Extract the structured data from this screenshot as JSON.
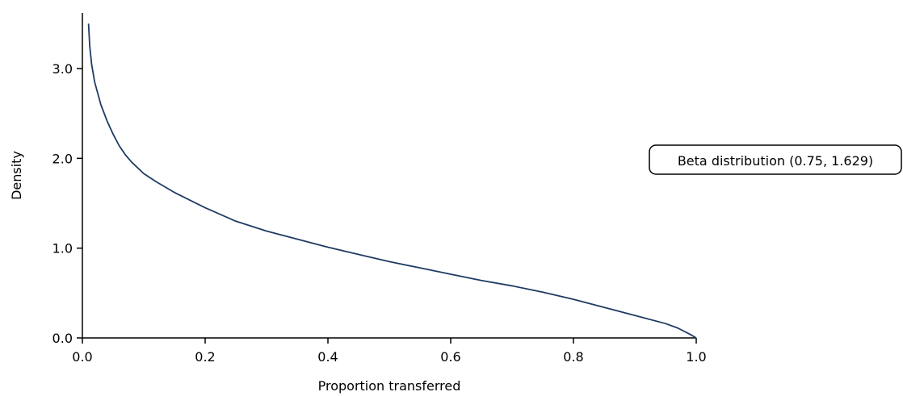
{
  "chart_data": {
    "type": "line",
    "title": "",
    "xlabel": "Proportion transferred",
    "ylabel": "Density",
    "xlim": [
      0.0,
      1.0
    ],
    "ylim": [
      0.0,
      3.5
    ],
    "x_ticks": [
      0.0,
      0.2,
      0.4,
      0.6,
      0.8,
      1.0
    ],
    "x_tick_labels": [
      "0.0",
      "0.2",
      "0.4",
      "0.6",
      "0.8",
      "1.0"
    ],
    "y_ticks": [
      0.0,
      1.0,
      2.0,
      3.0
    ],
    "y_tick_labels": [
      "0.0",
      "1.0",
      "2.0",
      "3.0"
    ],
    "grid": false,
    "annotation": "Beta distribution (0.75, 1.629)",
    "series": [
      {
        "color": "#1f3b63",
        "x": [
          0.01,
          0.012,
          0.015,
          0.02,
          0.03,
          0.04,
          0.05,
          0.06,
          0.07,
          0.08,
          0.1,
          0.12,
          0.15,
          0.2,
          0.25,
          0.3,
          0.35,
          0.4,
          0.45,
          0.5,
          0.55,
          0.6,
          0.65,
          0.7,
          0.75,
          0.8,
          0.85,
          0.9,
          0.95,
          0.97,
          0.99,
          1.0
        ],
        "y": [
          3.5,
          3.25,
          3.05,
          2.85,
          2.6,
          2.42,
          2.27,
          2.14,
          2.04,
          1.96,
          1.83,
          1.74,
          1.62,
          1.45,
          1.3,
          1.19,
          1.1,
          1.01,
          0.93,
          0.85,
          0.78,
          0.71,
          0.64,
          0.58,
          0.51,
          0.43,
          0.34,
          0.25,
          0.16,
          0.11,
          0.04,
          0.0
        ]
      }
    ]
  }
}
